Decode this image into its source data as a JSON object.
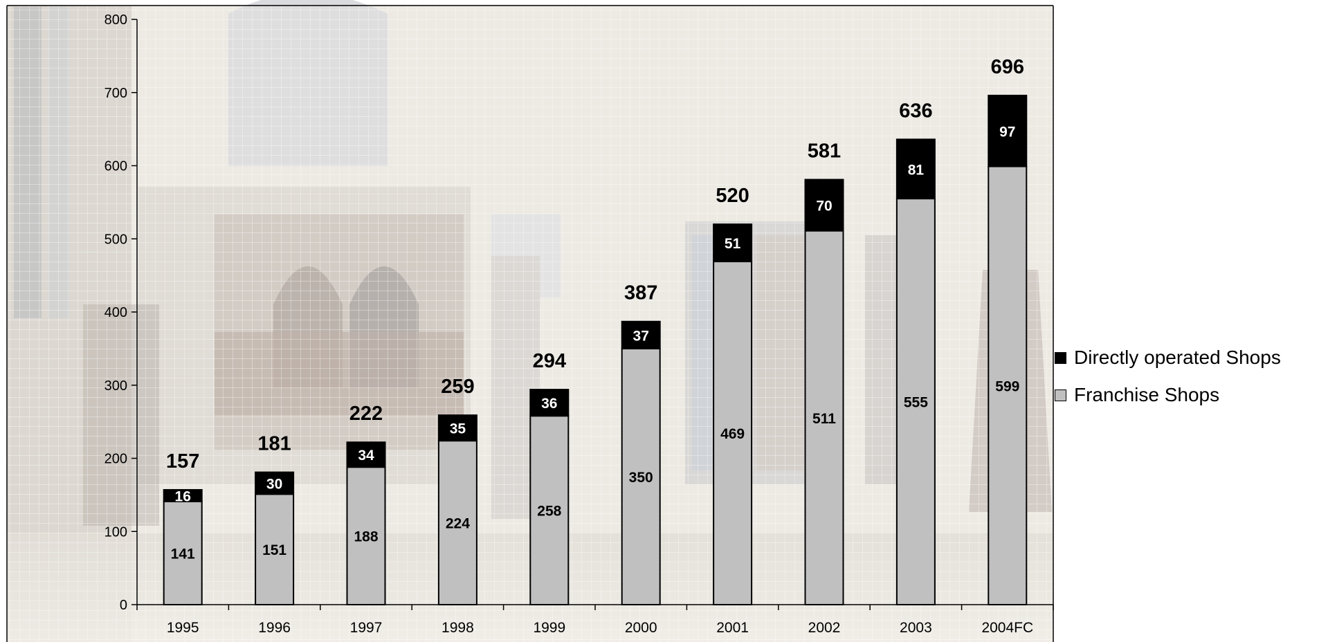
{
  "chart_data": {
    "type": "bar",
    "stacked": true,
    "title": "",
    "xlabel": "",
    "ylabel": "",
    "categories": [
      "1995",
      "1996",
      "1997",
      "1998",
      "1999",
      "2000",
      "2001",
      "2002",
      "2003",
      "2004FC"
    ],
    "series": [
      {
        "name": "Franchise Shops",
        "color": "#c0c0c0",
        "values": [
          141,
          151,
          188,
          224,
          258,
          350,
          469,
          511,
          555,
          599
        ]
      },
      {
        "name": "Directly operated Shops",
        "color": "#000000",
        "values": [
          16,
          30,
          34,
          35,
          36,
          37,
          51,
          70,
          81,
          97
        ]
      }
    ],
    "totals": [
      157,
      181,
      222,
      259,
      294,
      387,
      520,
      581,
      636,
      696
    ],
    "ylim": [
      0,
      800
    ],
    "yticks": [
      0,
      100,
      200,
      300,
      400,
      500,
      600,
      700,
      800
    ],
    "grid": true,
    "legend_position": "right",
    "legend": [
      {
        "label": "Directly operated Shops",
        "color": "#000000"
      },
      {
        "label": "Franchise Shops",
        "color": "#c0c0c0"
      }
    ],
    "background": "store interior photo (faded)"
  }
}
